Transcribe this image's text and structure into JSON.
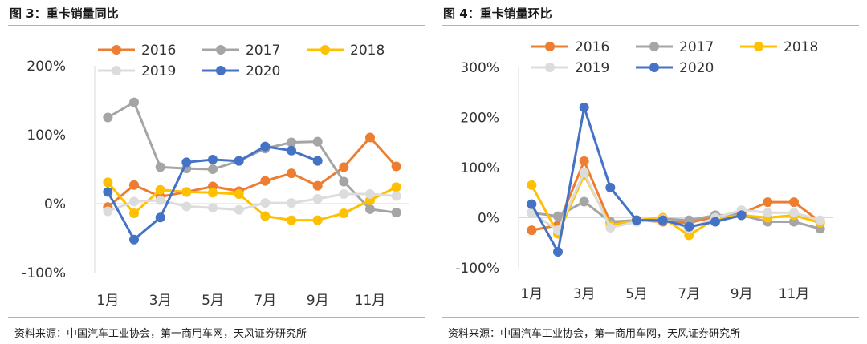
{
  "chart_data": [
    {
      "type": "line",
      "title": "图 3：重卡销量同比",
      "source": "资料来源：中国汽车工业协会，第一商用车网，天风证券研究所",
      "x": [
        "1月",
        "2月",
        "3月",
        "4月",
        "5月",
        "6月",
        "7月",
        "8月",
        "9月",
        "10月",
        "11月",
        "12月"
      ],
      "x_tick_labels": [
        "1月",
        "3月",
        "5月",
        "7月",
        "9月",
        "11月"
      ],
      "y_tick_labels": [
        "200%",
        "100%",
        "0%",
        "-100%"
      ],
      "ylim": [
        -100,
        200
      ],
      "legend_position": "top",
      "series": [
        {
          "name": "2016",
          "color": "#ed7d31",
          "values": [
            -5,
            27,
            10,
            17,
            25,
            18,
            33,
            44,
            26,
            53,
            96,
            54
          ]
        },
        {
          "name": "2017",
          "color": "#a5a5a5",
          "values": [
            125,
            147,
            53,
            51,
            50,
            62,
            80,
            89,
            90,
            32,
            -8,
            -13
          ]
        },
        {
          "name": "2018",
          "color": "#ffc000",
          "values": [
            31,
            -14,
            20,
            17,
            16,
            14,
            -18,
            -24,
            -24,
            -14,
            5,
            24
          ]
        },
        {
          "name": "2019",
          "color": "#dcdcdc",
          "values": [
            -11,
            3,
            5,
            -4,
            -6,
            -9,
            1,
            1,
            7,
            14,
            14,
            11
          ]
        },
        {
          "name": "2020",
          "color": "#4472c4",
          "values": [
            17,
            -52,
            -20,
            60,
            64,
            62,
            83,
            77,
            62,
            null,
            null,
            null
          ]
        }
      ]
    },
    {
      "type": "line",
      "title": "图 4：重卡销量环比",
      "source": "资料来源：中国汽车工业协会，第一商用车网，天风证券研究所",
      "x": [
        "1月",
        "2月",
        "3月",
        "4月",
        "5月",
        "6月",
        "7月",
        "8月",
        "9月",
        "10月",
        "11月",
        "12月"
      ],
      "x_tick_labels": [
        "1月",
        "3月",
        "5月",
        "7月",
        "9月",
        "11月"
      ],
      "y_tick_labels": [
        "300%",
        "200%",
        "100%",
        "0%",
        "-100%"
      ],
      "ylim": [
        -100,
        300
      ],
      "legend_position": "top",
      "series": [
        {
          "name": "2016",
          "color": "#ed7d31",
          "values": [
            -25,
            -15,
            113,
            -10,
            -5,
            -8,
            -10,
            2,
            8,
            31,
            31,
            -8
          ]
        },
        {
          "name": "2017",
          "color": "#a5a5a5",
          "values": [
            10,
            3,
            32,
            -8,
            -5,
            -2,
            -5,
            5,
            5,
            -8,
            -8,
            -22
          ]
        },
        {
          "name": "2018",
          "color": "#ffc000",
          "values": [
            65,
            -32,
            85,
            -15,
            -5,
            0,
            -35,
            -2,
            5,
            0,
            5,
            -10
          ]
        },
        {
          "name": "2019",
          "color": "#dcdcdc",
          "values": [
            10,
            -25,
            90,
            -20,
            -8,
            -3,
            -22,
            0,
            15,
            10,
            10,
            -5
          ]
        },
        {
          "name": "2020",
          "color": "#4472c4",
          "values": [
            27,
            -68,
            220,
            60,
            -5,
            -5,
            -18,
            -8,
            5,
            null,
            null,
            null
          ]
        }
      ]
    }
  ]
}
